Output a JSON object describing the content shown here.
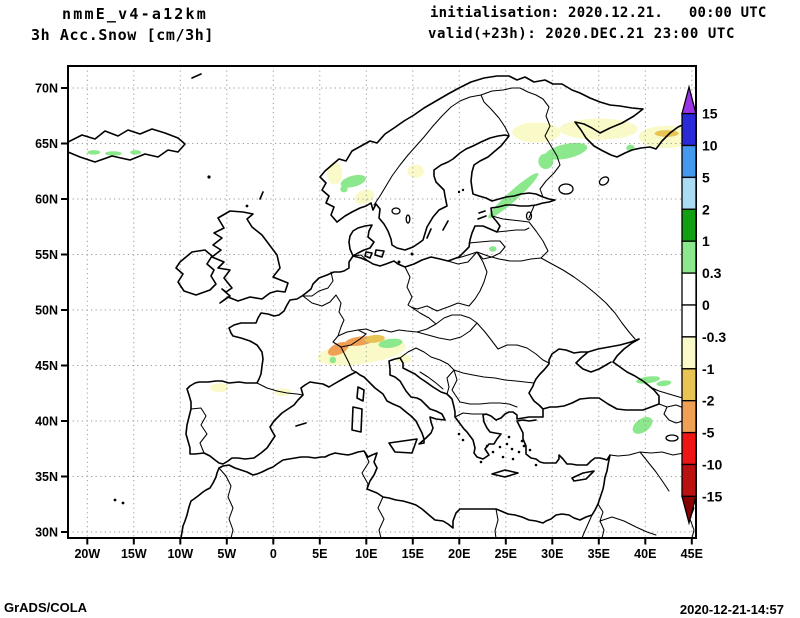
{
  "header": {
    "model": "nmmE_v4-a12km",
    "field": "3h Acc.Snow [cm/3h]",
    "init": "initialisation: 2020.12.21.   00:00 UTC",
    "valid": "valid(+23h): 2020.DEC.21 23:00 UTC"
  },
  "footer": {
    "left": "GrADS/COLA",
    "right": "2020-12-21-14:57"
  },
  "chart_data": {
    "type": "heatmap",
    "subtype": "filled-contour-map",
    "title": "nmmE_v4-a12km",
    "subtitle": "3h Acc.Snow [cm/3h]",
    "units": "cm/3h",
    "projection": "latlon",
    "lon_range": [
      -22.4,
      45.3
    ],
    "lat_range": [
      29.5,
      72.0
    ],
    "grid": true,
    "x_ticks": [
      {
        "lon": -20,
        "label": "20W"
      },
      {
        "lon": -15,
        "label": "15W"
      },
      {
        "lon": -10,
        "label": "10W"
      },
      {
        "lon": -5,
        "label": "5W"
      },
      {
        "lon": 0,
        "label": "0"
      },
      {
        "lon": 5,
        "label": "5E"
      },
      {
        "lon": 10,
        "label": "10E"
      },
      {
        "lon": 15,
        "label": "15E"
      },
      {
        "lon": 20,
        "label": "20E"
      },
      {
        "lon": 25,
        "label": "25E"
      },
      {
        "lon": 30,
        "label": "30E"
      },
      {
        "lon": 35,
        "label": "35E"
      },
      {
        "lon": 40,
        "label": "40E"
      },
      {
        "lon": 45,
        "label": "45E"
      }
    ],
    "y_ticks": [
      {
        "lat": 70,
        "label": "70N"
      },
      {
        "lat": 65,
        "label": "65N"
      },
      {
        "lat": 60,
        "label": "60N"
      },
      {
        "lat": 55,
        "label": "55N"
      },
      {
        "lat": 50,
        "label": "50N"
      },
      {
        "lat": 45,
        "label": "45N"
      },
      {
        "lat": 40,
        "label": "40N"
      },
      {
        "lat": 35,
        "label": "35N"
      },
      {
        "lat": 30,
        "label": "30N"
      }
    ],
    "colorbar": {
      "position": "right",
      "levels": [
        "15",
        "10",
        "5",
        "2",
        "1",
        "0.3",
        "0",
        "-0.3",
        "-1",
        "-2",
        "-5",
        "-10",
        "-15"
      ],
      "segment_colors": [
        "#2a2ad9",
        "#4499ee",
        "#aaddf5",
        "#11a011",
        "#8ce88c",
        "#ffffff",
        "#ffffff",
        "#fafac8",
        "#e8c455",
        "#f0a055",
        "#ee1515",
        "#bb1111"
      ],
      "above_color": "#9933e6",
      "below_color": "#880000"
    },
    "palette": {
      "light-green": "#8ce88c",
      "green": "#11a011",
      "pale-yellow": "#fafac8",
      "gold": "#e8c455",
      "orange": "#f0a055"
    },
    "snow_patches": [
      {
        "color": "light-green",
        "lon": -19.3,
        "lat": 64.2,
        "rx": 0.7,
        "ry": 0.2,
        "rot": 0
      },
      {
        "color": "light-green",
        "lon": -17.2,
        "lat": 64.1,
        "rx": 0.9,
        "ry": 0.2,
        "rot": 0
      },
      {
        "color": "light-green",
        "lon": -14.8,
        "lat": 64.2,
        "rx": 0.6,
        "ry": 0.2,
        "rot": 0
      },
      {
        "color": "light-green",
        "lon": 8.6,
        "lat": 61.6,
        "rx": 1.4,
        "ry": 0.5,
        "rot": -15
      },
      {
        "color": "light-green",
        "lon": 7.6,
        "lat": 60.9,
        "rx": 0.4,
        "ry": 0.3,
        "rot": 0
      },
      {
        "color": "pale-yellow",
        "lon": 6.6,
        "lat": 62.3,
        "rx": 0.8,
        "ry": 1.0,
        "rot": 0
      },
      {
        "color": "pale-yellow",
        "lon": 9.8,
        "lat": 60.2,
        "rx": 1.1,
        "ry": 0.6,
        "rot": -20
      },
      {
        "color": "pale-yellow",
        "lon": 15.3,
        "lat": 62.5,
        "rx": 0.9,
        "ry": 0.6,
        "rot": 0
      },
      {
        "color": "light-green",
        "lon": 31.5,
        "lat": 64.3,
        "rx": 2.3,
        "ry": 0.65,
        "rot": -12
      },
      {
        "color": "light-green",
        "lon": 29.3,
        "lat": 63.4,
        "rx": 0.8,
        "ry": 0.7,
        "rot": 0
      },
      {
        "color": "light-green",
        "lon": 25.8,
        "lat": 60.3,
        "rx": 3.6,
        "ry": 0.45,
        "rot": -42
      },
      {
        "color": "light-green",
        "lon": 23.6,
        "lat": 55.5,
        "rx": 0.4,
        "ry": 0.25,
        "rot": 0
      },
      {
        "color": "pale-yellow",
        "lon": 28.3,
        "lat": 66.0,
        "rx": 2.6,
        "ry": 0.9,
        "rot": 0
      },
      {
        "color": "pale-yellow",
        "lon": 35.0,
        "lat": 66.3,
        "rx": 4.2,
        "ry": 0.95,
        "rot": 0
      },
      {
        "color": "pale-yellow",
        "lon": 42.3,
        "lat": 65.6,
        "rx": 3.0,
        "ry": 1.0,
        "rot": 0
      },
      {
        "color": "gold",
        "lon": 42.3,
        "lat": 65.9,
        "rx": 1.3,
        "ry": 0.3,
        "rot": 0
      },
      {
        "color": "light-green",
        "lon": 38.4,
        "lat": 64.6,
        "rx": 0.45,
        "ry": 0.3,
        "rot": 0
      },
      {
        "color": "pale-yellow",
        "lon": 9.5,
        "lat": 46.2,
        "rx": 4.8,
        "ry": 1.05,
        "rot": -8
      },
      {
        "color": "orange",
        "lon": 7.0,
        "lat": 46.5,
        "rx": 1.2,
        "ry": 0.5,
        "rot": -25
      },
      {
        "color": "orange",
        "lon": 9.3,
        "lat": 47.2,
        "rx": 1.6,
        "ry": 0.4,
        "rot": -8
      },
      {
        "color": "gold",
        "lon": 10.9,
        "lat": 47.4,
        "rx": 1.1,
        "ry": 0.35,
        "rot": -5
      },
      {
        "color": "light-green",
        "lon": 12.6,
        "lat": 47.0,
        "rx": 1.3,
        "ry": 0.4,
        "rot": -8
      },
      {
        "color": "light-green",
        "lon": 6.4,
        "lat": 45.5,
        "rx": 0.35,
        "ry": 0.3,
        "rot": 0
      },
      {
        "color": "pale-yellow",
        "lon": 14.0,
        "lat": 45.6,
        "rx": 0.8,
        "ry": 0.4,
        "rot": 0
      },
      {
        "color": "pale-yellow",
        "lon": -5.8,
        "lat": 43.0,
        "rx": 1.0,
        "ry": 0.4,
        "rot": 0
      },
      {
        "color": "pale-yellow",
        "lon": 1.0,
        "lat": 42.6,
        "rx": 0.9,
        "ry": 0.35,
        "rot": 0
      },
      {
        "color": "light-green",
        "lon": 40.3,
        "lat": 43.7,
        "rx": 1.3,
        "ry": 0.3,
        "rot": -8
      },
      {
        "color": "light-green",
        "lon": 42.0,
        "lat": 43.4,
        "rx": 0.8,
        "ry": 0.25,
        "rot": -8
      },
      {
        "color": "light-green",
        "lon": 39.7,
        "lat": 39.6,
        "rx": 1.2,
        "ry": 0.6,
        "rot": -35
      }
    ]
  }
}
